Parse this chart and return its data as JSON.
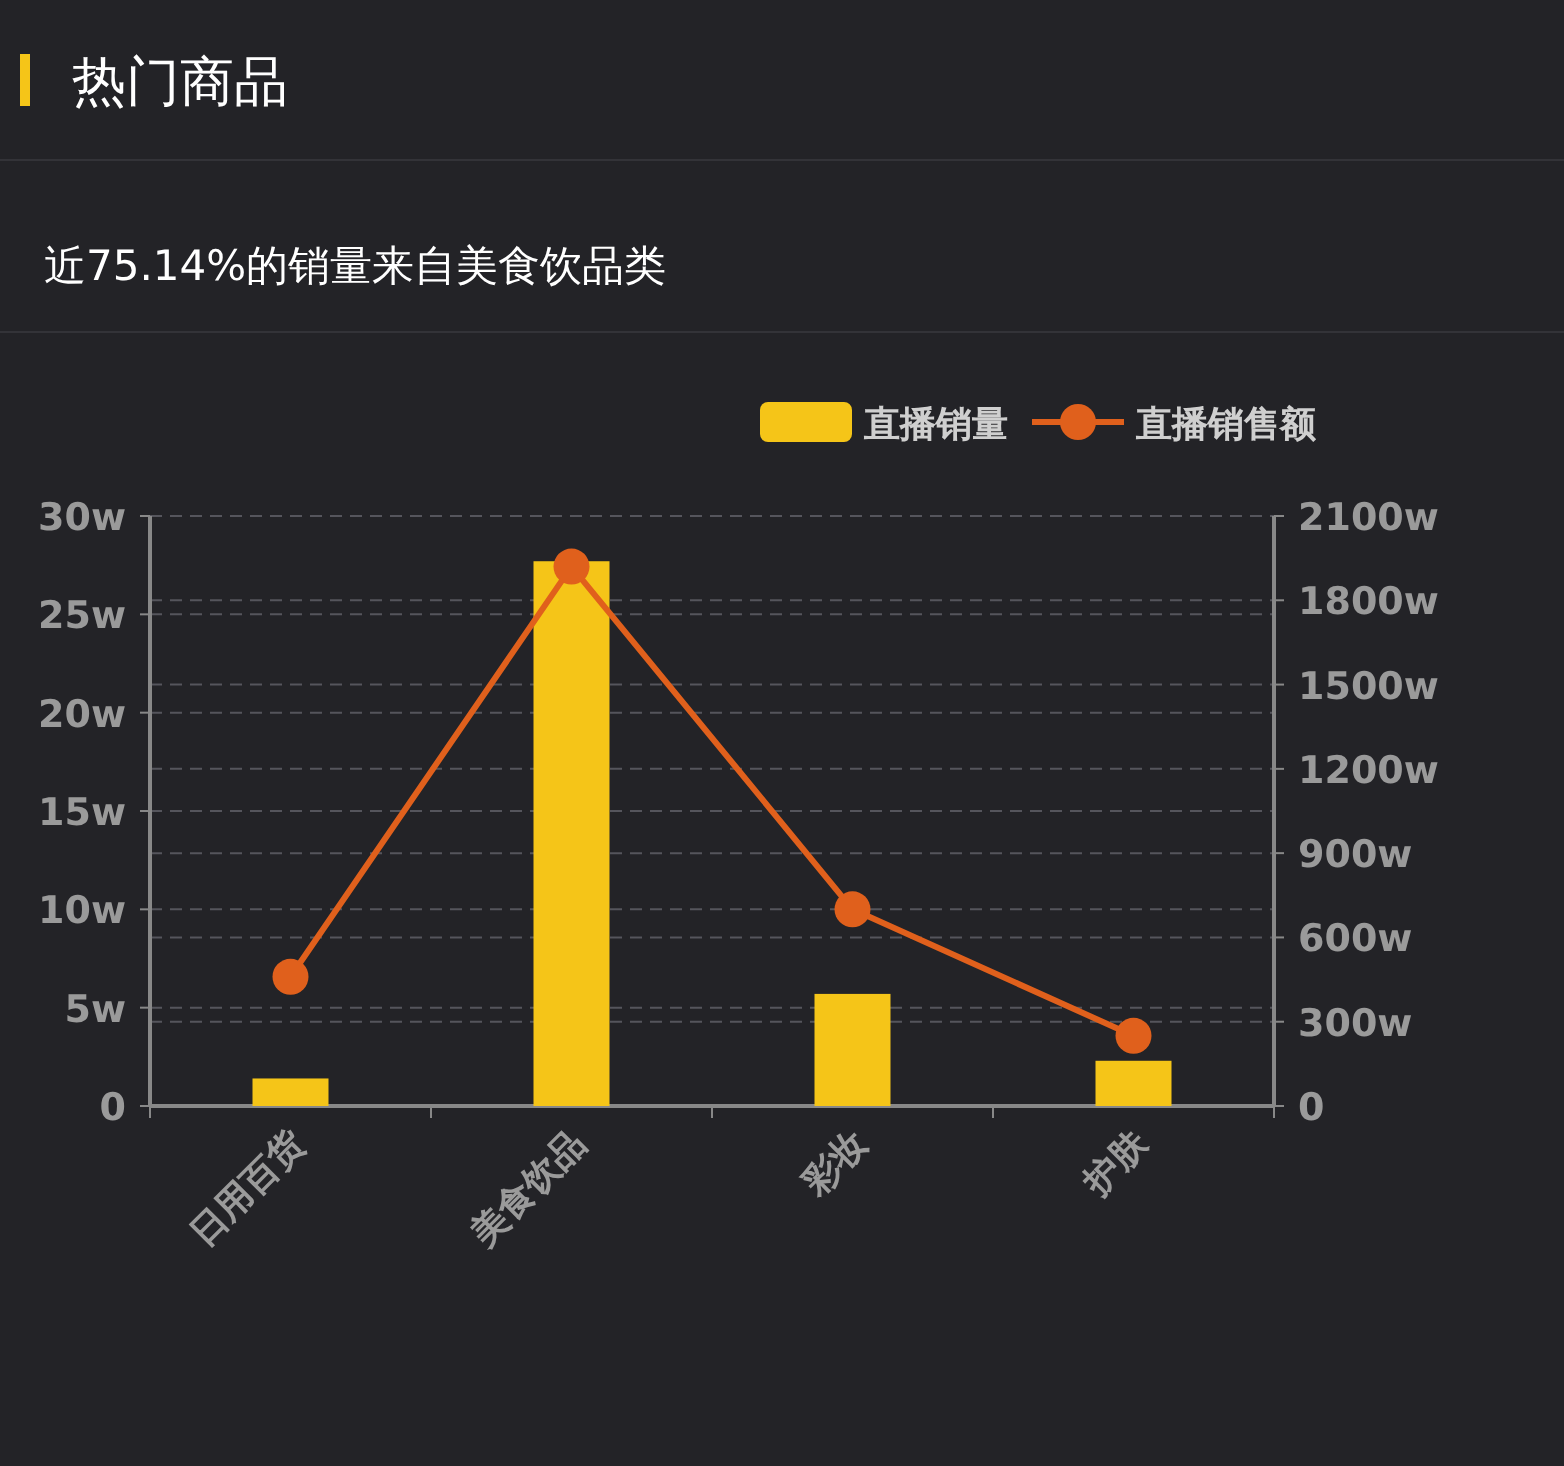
{
  "chart_data": {
    "type": "bar",
    "title": "热门商品",
    "subtitle": "近75.14%的销量来自美食饮品类",
    "categories": [
      "日用百货",
      "美食饮品",
      "彩妆",
      "护肤"
    ],
    "series": [
      {
        "name": "直播销量",
        "color": "#f5c518",
        "values": [
          1.4,
          27.7,
          5.7,
          2.3
        ]
      },
      {
        "name": "直播销售额",
        "type": "line",
        "color": "#e0601c",
        "axis": "y2",
        "marker": "circle",
        "values": [
          460,
          1920,
          700,
          250
        ]
      }
    ],
    "ylim": [
      0,
      30
    ],
    "yticks": [
      {
        "value": 0,
        "label": "0"
      },
      {
        "value": 5,
        "label": "5w"
      },
      {
        "value": 10,
        "label": "10w"
      },
      {
        "value": 15,
        "label": "15w"
      },
      {
        "value": 20,
        "label": "20w"
      },
      {
        "value": 25,
        "label": "25w"
      },
      {
        "value": 30,
        "label": "30w"
      }
    ],
    "y2lim": [
      0,
      2100
    ],
    "y2ticks": [
      {
        "value": 0,
        "label": "0"
      },
      {
        "value": 300,
        "label": "300w"
      },
      {
        "value": 600,
        "label": "600w"
      },
      {
        "value": 900,
        "label": "900w"
      },
      {
        "value": 1200,
        "label": "1200w"
      },
      {
        "value": 1500,
        "label": "1500w"
      },
      {
        "value": 1800,
        "label": "1800w"
      },
      {
        "value": 2100,
        "label": "2100w"
      }
    ],
    "grid": true,
    "legend": "top right"
  }
}
